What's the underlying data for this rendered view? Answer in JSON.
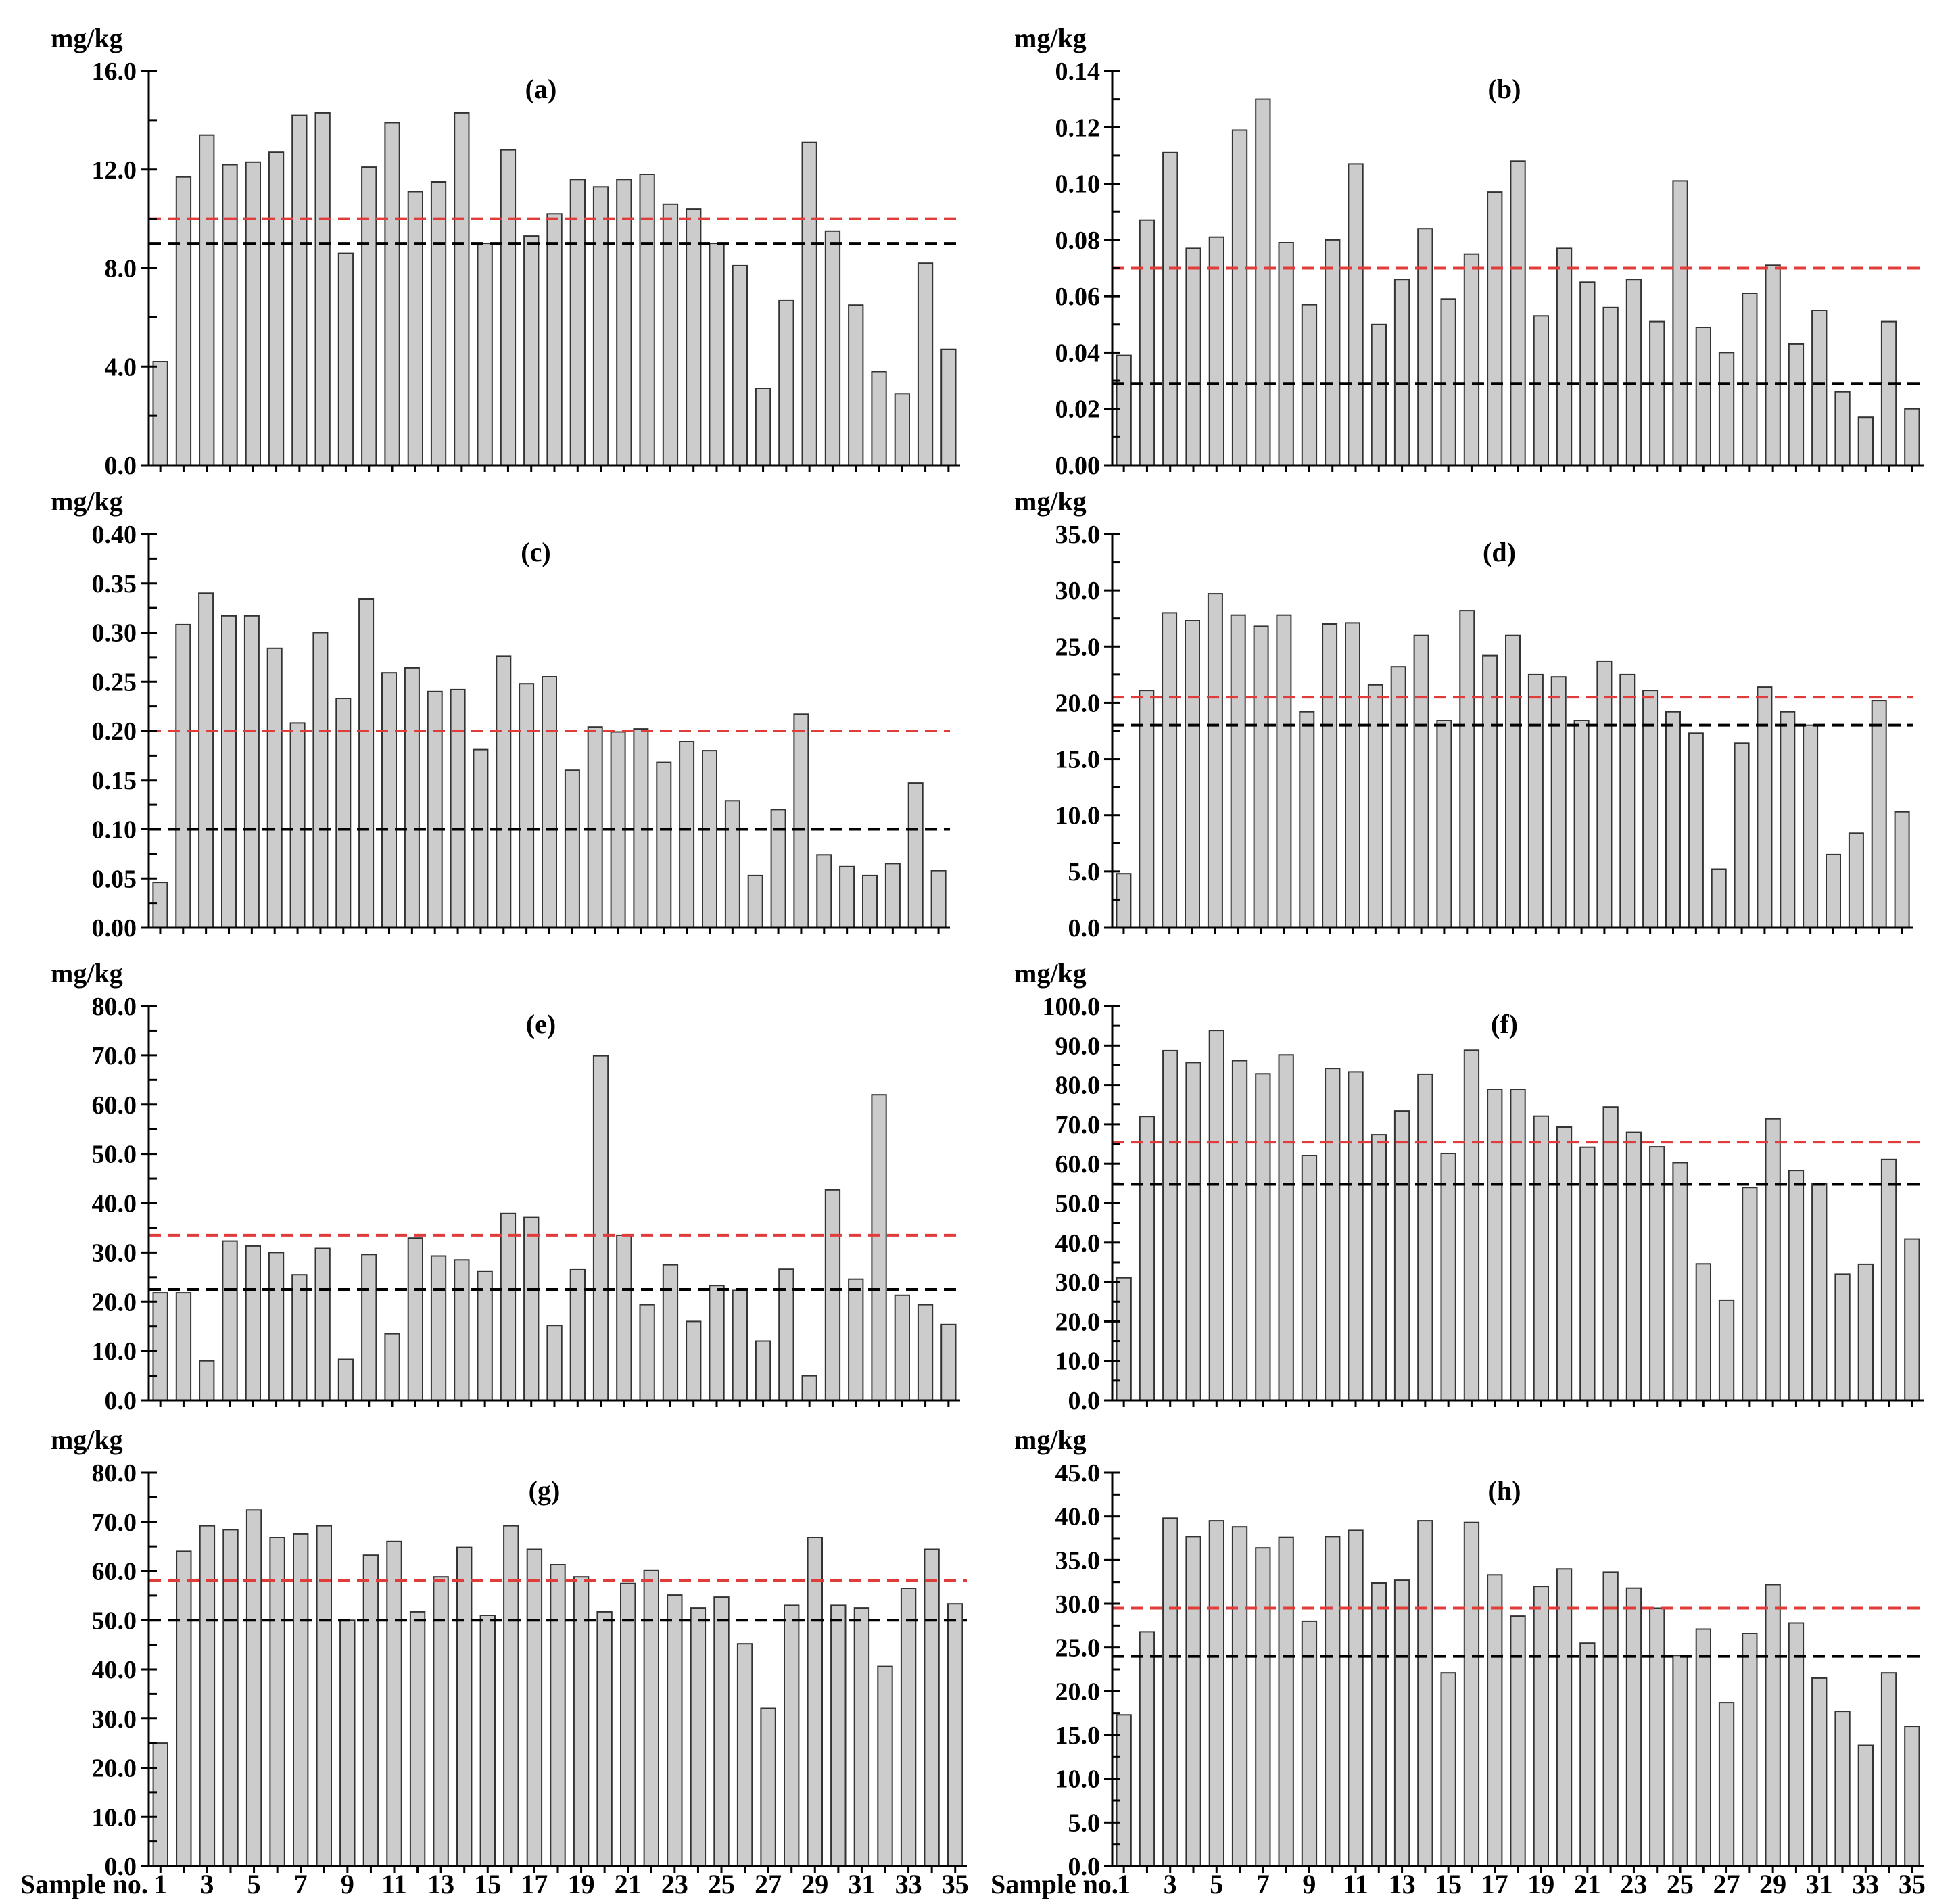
{
  "xlabel": "Sample no.",
  "x_tick_labels_left": [
    "1",
    "3",
    "5",
    "7",
    "9",
    "11",
    "13",
    "15",
    "17",
    "19",
    "21",
    "23",
    "25",
    "27",
    "29",
    "31",
    "33",
    "35"
  ],
  "x_tick_labels_right": [
    "1",
    "3",
    "5",
    "7",
    "9",
    "11",
    "13",
    "15",
    "17",
    "19",
    "21",
    "23",
    "25",
    "27",
    "29",
    "31",
    "33",
    "35"
  ],
  "colors": {
    "bar_fill": "#cccccc",
    "bar_edge": "#333333",
    "red_line": "#e03c3c",
    "black_line": "#000000"
  },
  "chart_data": [
    {
      "type": "bar",
      "panel": "(a)",
      "unit": "mg/kg",
      "categories": [
        "1",
        "2",
        "3",
        "4",
        "5",
        "6",
        "7",
        "8",
        "9",
        "10",
        "11",
        "12",
        "13",
        "14",
        "15",
        "16",
        "17",
        "18",
        "19",
        "20",
        "21",
        "22",
        "23",
        "24",
        "25",
        "26",
        "27",
        "28",
        "29",
        "30",
        "31",
        "32",
        "33",
        "34",
        "35"
      ],
      "values": [
        4.2,
        11.7,
        13.4,
        12.2,
        12.3,
        12.7,
        14.2,
        14.3,
        8.6,
        12.1,
        13.9,
        11.1,
        11.5,
        14.3,
        9.0,
        12.8,
        9.3,
        10.2,
        11.6,
        11.3,
        11.6,
        11.8,
        10.6,
        10.4,
        9.0,
        8.1,
        3.1,
        6.7,
        13.1,
        9.5,
        6.5,
        3.8,
        2.9,
        8.2,
        4.7
      ],
      "ylim": [
        0,
        16
      ],
      "yticks": [
        "0.0",
        "4.0",
        "8.0",
        "12.0",
        "16.0"
      ],
      "ytick_values": [
        0,
        4,
        8,
        12,
        16
      ],
      "minor_step": 2,
      "red_line": 10.0,
      "black_line": 9.0
    },
    {
      "type": "bar",
      "panel": "(b)",
      "unit": "mg/kg",
      "categories": [
        "1",
        "2",
        "3",
        "4",
        "5",
        "6",
        "7",
        "8",
        "9",
        "10",
        "11",
        "12",
        "13",
        "14",
        "15",
        "16",
        "17",
        "18",
        "19",
        "20",
        "21",
        "22",
        "23",
        "24",
        "25",
        "26",
        "27",
        "28",
        "29",
        "30",
        "31",
        "32",
        "33",
        "34",
        "35"
      ],
      "values": [
        0.039,
        0.087,
        0.111,
        0.077,
        0.081,
        0.119,
        0.13,
        0.079,
        0.057,
        0.08,
        0.107,
        0.05,
        0.066,
        0.084,
        0.059,
        0.075,
        0.097,
        0.108,
        0.053,
        0.077,
        0.065,
        0.056,
        0.066,
        0.051,
        0.101,
        0.049,
        0.04,
        0.061,
        0.071,
        0.043,
        0.055,
        0.026,
        0.017,
        0.051,
        0.02
      ],
      "ylim": [
        0,
        0.14
      ],
      "yticks": [
        "0.00",
        "0.02",
        "0.04",
        "0.06",
        "0.08",
        "0.10",
        "0.12",
        "0.14"
      ],
      "ytick_values": [
        0,
        0.02,
        0.04,
        0.06,
        0.08,
        0.1,
        0.12,
        0.14
      ],
      "minor_step": 0.01,
      "red_line": 0.07,
      "black_line": 0.029
    },
    {
      "type": "bar",
      "panel": "(c)",
      "unit": "mg/kg",
      "categories": [
        "1",
        "2",
        "3",
        "4",
        "5",
        "6",
        "7",
        "8",
        "9",
        "10",
        "11",
        "12",
        "13",
        "14",
        "15",
        "16",
        "17",
        "18",
        "19",
        "20",
        "21",
        "22",
        "23",
        "24",
        "25",
        "26",
        "27",
        "28",
        "29",
        "30",
        "31",
        "32",
        "33",
        "34",
        "35"
      ],
      "values": [
        0.046,
        0.308,
        0.34,
        0.317,
        0.317,
        0.284,
        0.208,
        0.3,
        0.233,
        0.334,
        0.259,
        0.264,
        0.24,
        0.242,
        0.181,
        0.276,
        0.248,
        0.255,
        0.16,
        0.204,
        0.199,
        0.202,
        0.168,
        0.189,
        0.18,
        0.129,
        0.053,
        0.12,
        0.217,
        0.074,
        0.062,
        0.053,
        0.065,
        0.147,
        0.058
      ],
      "ylim": [
        0,
        0.4
      ],
      "yticks": [
        "0.00",
        "0.05",
        "0.10",
        "0.15",
        "0.20",
        "0.25",
        "0.30",
        "0.35",
        "0.40"
      ],
      "ytick_values": [
        0,
        0.05,
        0.1,
        0.15,
        0.2,
        0.25,
        0.3,
        0.35,
        0.4
      ],
      "minor_step": 0.025,
      "red_line": 0.2,
      "black_line": 0.1
    },
    {
      "type": "bar",
      "panel": "(d)",
      "unit": "mg/kg",
      "categories": [
        "1",
        "2",
        "3",
        "4",
        "5",
        "6",
        "7",
        "8",
        "9",
        "10",
        "11",
        "12",
        "13",
        "14",
        "15",
        "16",
        "17",
        "18",
        "19",
        "20",
        "21",
        "22",
        "23",
        "24",
        "25",
        "26",
        "27",
        "28",
        "29",
        "30",
        "31",
        "32",
        "33",
        "34",
        "35"
      ],
      "values": [
        4.8,
        21.1,
        28.0,
        27.3,
        29.7,
        27.8,
        26.8,
        27.8,
        19.2,
        27.0,
        27.1,
        21.6,
        23.2,
        26.0,
        18.4,
        28.2,
        24.2,
        26.0,
        22.5,
        22.3,
        18.4,
        23.7,
        22.5,
        21.1,
        19.2,
        17.3,
        5.2,
        16.4,
        21.4,
        19.2,
        18.0,
        6.5,
        8.4,
        20.2,
        10.3
      ],
      "ylim": [
        0,
        35
      ],
      "yticks": [
        "0.0",
        "5.0",
        "10.0",
        "15.0",
        "20.0",
        "25.0",
        "30.0",
        "35.0"
      ],
      "ytick_values": [
        0,
        5,
        10,
        15,
        20,
        25,
        30,
        35
      ],
      "minor_step": 2.5,
      "red_line": 20.5,
      "black_line": 18.0
    },
    {
      "type": "bar",
      "panel": "(e)",
      "unit": "mg/kg",
      "categories": [
        "1",
        "2",
        "3",
        "4",
        "5",
        "6",
        "7",
        "8",
        "9",
        "10",
        "11",
        "12",
        "13",
        "14",
        "15",
        "16",
        "17",
        "18",
        "19",
        "20",
        "21",
        "22",
        "23",
        "24",
        "25",
        "26",
        "27",
        "28",
        "29",
        "30",
        "31",
        "32",
        "33",
        "34",
        "35"
      ],
      "values": [
        21.8,
        21.8,
        8.0,
        32.3,
        31.3,
        30.0,
        25.5,
        30.8,
        8.3,
        29.6,
        13.5,
        32.9,
        29.3,
        28.5,
        26.1,
        37.9,
        37.1,
        15.2,
        26.5,
        69.9,
        33.5,
        19.4,
        27.5,
        16.0,
        23.3,
        22.3,
        12.0,
        26.6,
        5.0,
        42.7,
        24.6,
        62.0,
        21.3,
        19.4,
        15.4
      ],
      "ylim": [
        0,
        80
      ],
      "yticks": [
        "0.0",
        "10.0",
        "20.0",
        "30.0",
        "40.0",
        "50.0",
        "60.0",
        "70.0",
        "80.0"
      ],
      "ytick_values": [
        0,
        10,
        20,
        30,
        40,
        50,
        60,
        70,
        80
      ],
      "minor_step": 5,
      "red_line": 33.5,
      "black_line": 22.5
    },
    {
      "type": "bar",
      "panel": "(f)",
      "unit": "mg/kg",
      "categories": [
        "1",
        "2",
        "3",
        "4",
        "5",
        "6",
        "7",
        "8",
        "9",
        "10",
        "11",
        "12",
        "13",
        "14",
        "15",
        "16",
        "17",
        "18",
        "19",
        "20",
        "21",
        "22",
        "23",
        "24",
        "25",
        "26",
        "27",
        "28",
        "29",
        "30",
        "31",
        "32",
        "33",
        "34",
        "35"
      ],
      "values": [
        31.1,
        72.0,
        88.7,
        85.7,
        93.8,
        86.2,
        82.8,
        87.6,
        62.1,
        84.2,
        83.3,
        67.4,
        73.4,
        82.7,
        62.6,
        88.8,
        78.9,
        78.9,
        72.1,
        69.3,
        64.2,
        74.4,
        68.0,
        64.3,
        60.3,
        34.6,
        25.4,
        54.0,
        71.4,
        58.3,
        54.9,
        32.0,
        34.5,
        61.1,
        40.9
      ],
      "ylim": [
        0,
        100
      ],
      "yticks": [
        "0.0",
        "10.0",
        "20.0",
        "30.0",
        "40.0",
        "50.0",
        "60.0",
        "70.0",
        "80.0",
        "90.0",
        "100.0"
      ],
      "ytick_values": [
        0,
        10,
        20,
        30,
        40,
        50,
        60,
        70,
        80,
        90,
        100
      ],
      "minor_step": 5,
      "red_line": 65.5,
      "black_line": 54.8
    },
    {
      "type": "bar",
      "panel": "(g)",
      "unit": "mg/kg",
      "categories": [
        "1",
        "2",
        "3",
        "4",
        "5",
        "6",
        "7",
        "8",
        "9",
        "10",
        "11",
        "12",
        "13",
        "14",
        "15",
        "16",
        "17",
        "18",
        "19",
        "20",
        "21",
        "22",
        "23",
        "24",
        "25",
        "26",
        "27",
        "28",
        "29",
        "30",
        "31",
        "32",
        "33",
        "34",
        "35"
      ],
      "values": [
        25.0,
        64.0,
        69.2,
        68.4,
        72.4,
        66.8,
        67.5,
        69.2,
        50.0,
        63.2,
        66.0,
        51.7,
        58.8,
        64.8,
        51.0,
        69.2,
        64.4,
        61.3,
        58.8,
        51.7,
        57.5,
        60.1,
        55.1,
        52.5,
        54.7,
        45.2,
        32.1,
        53.0,
        66.8,
        53.0,
        52.5,
        40.6,
        56.5,
        64.4,
        53.3
      ],
      "ylim": [
        0,
        80
      ],
      "yticks": [
        "0.0",
        "10.0",
        "20.0",
        "30.0",
        "40.0",
        "50.0",
        "60.0",
        "70.0",
        "80.0"
      ],
      "ytick_values": [
        0,
        10,
        20,
        30,
        40,
        50,
        60,
        70,
        80
      ],
      "minor_step": 5,
      "red_line": 58.0,
      "black_line": 50.0
    },
    {
      "type": "bar",
      "panel": "(h)",
      "unit": "mg/kg",
      "categories": [
        "1",
        "2",
        "3",
        "4",
        "5",
        "6",
        "7",
        "8",
        "9",
        "10",
        "11",
        "12",
        "13",
        "14",
        "15",
        "16",
        "17",
        "18",
        "19",
        "20",
        "21",
        "22",
        "23",
        "24",
        "25",
        "26",
        "27",
        "28",
        "29",
        "30",
        "31",
        "32",
        "33",
        "34",
        "35"
      ],
      "values": [
        17.3,
        26.8,
        39.8,
        37.7,
        39.5,
        38.8,
        36.4,
        37.6,
        28.0,
        37.7,
        38.4,
        32.4,
        32.7,
        39.5,
        22.1,
        39.3,
        33.3,
        28.6,
        32.0,
        34.0,
        25.5,
        33.6,
        31.8,
        29.5,
        24.1,
        27.1,
        18.7,
        26.6,
        32.2,
        27.8,
        21.5,
        17.7,
        13.8,
        22.1,
        16.0
      ],
      "ylim": [
        0,
        45
      ],
      "yticks": [
        "0.0",
        "5.0",
        "10.0",
        "15.0",
        "20.0",
        "25.0",
        "30.0",
        "35.0",
        "40.0",
        "45.0"
      ],
      "ytick_values": [
        0,
        5,
        10,
        15,
        20,
        25,
        30,
        35,
        40,
        45
      ],
      "minor_step": 2.5,
      "red_line": 29.5,
      "black_line": 24.0
    }
  ]
}
